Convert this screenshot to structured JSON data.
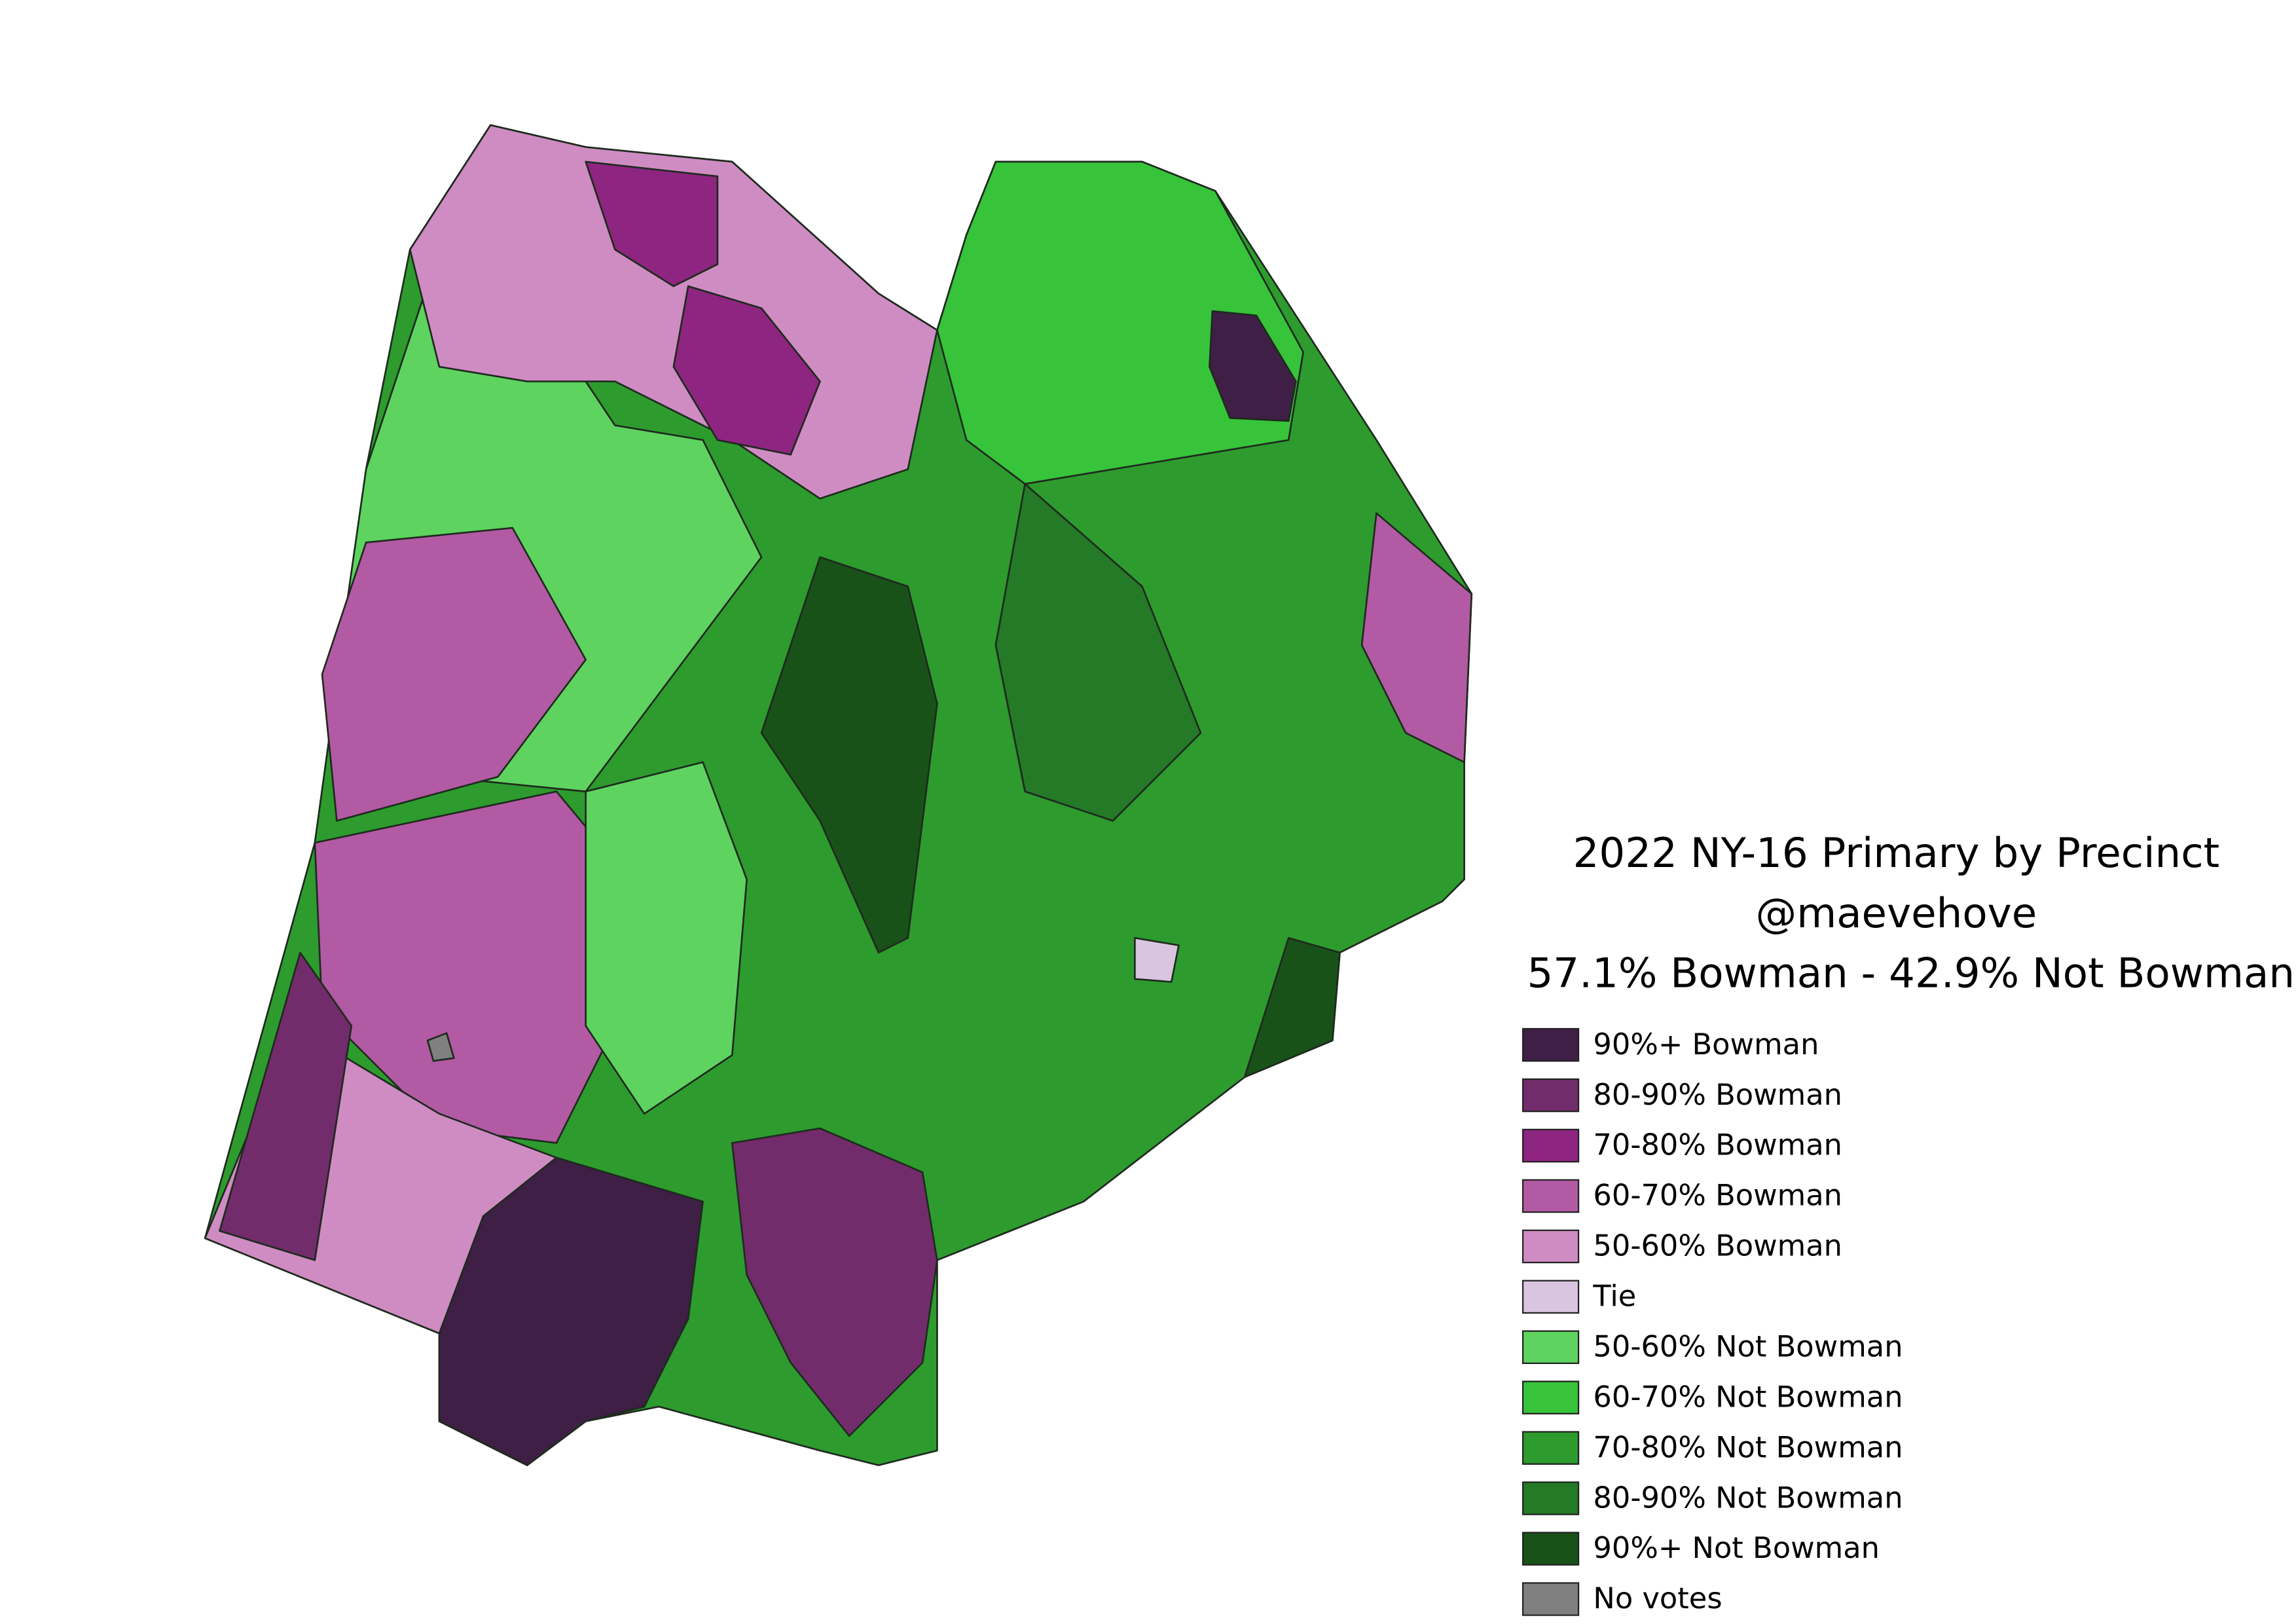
{
  "title": [
    "2022 NY-16 Primary by Precinct",
    "@maevehove",
    "57.1% Bowman - 42.9% Not Bowman"
  ],
  "legend": [
    {
      "label": "90%+ Bowman",
      "color": "#3f1f45"
    },
    {
      "label": "80-90% Bowman",
      "color": "#722c6b"
    },
    {
      "label": "70-80% Bowman",
      "color": "#8e2580"
    },
    {
      "label": "60-70% Bowman",
      "color": "#b35aa4"
    },
    {
      "label": "50-60% Bowman",
      "color": "#cf8cc3"
    },
    {
      "label": "Tie",
      "color": "#d9c5df"
    },
    {
      "label": "50-60% Not Bowman",
      "color": "#5ed35f"
    },
    {
      "label": "60-70% Not Bowman",
      "color": "#37c43a"
    },
    {
      "label": "70-80% Not Bowman",
      "color": "#2e9b2e"
    },
    {
      "label": "80-90% Not Bowman",
      "color": "#247a27"
    },
    {
      "label": "90%+ Not Bowman",
      "color": "#195219"
    },
    {
      "label": "No votes",
      "color": "#808080"
    }
  ]
}
